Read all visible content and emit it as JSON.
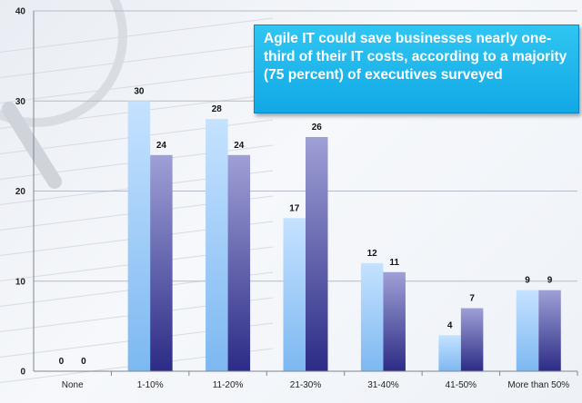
{
  "chart_data": {
    "type": "bar",
    "categories": [
      "None",
      "1-10%",
      "11-20%",
      "21-30%",
      "31-40%",
      "41-50%",
      "More than 50%"
    ],
    "series": [
      {
        "values": [
          0,
          30,
          28,
          17,
          12,
          4,
          9
        ]
      },
      {
        "values": [
          0,
          24,
          24,
          26,
          11,
          7,
          9
        ]
      }
    ],
    "ylim": [
      0,
      40
    ],
    "yticks": [
      0,
      10,
      20,
      30,
      40
    ],
    "grid": true,
    "annotation": "Agile IT could save businesses nearly one-third of their IT costs, according to a majority (75 percent) of executives surveyed",
    "colors": {
      "series1": [
        "#c5e2ff",
        "#7db8f1"
      ],
      "series2": [
        "#9fa0d6",
        "#2c2b86"
      ],
      "callout": "#1ab4ea",
      "grid": "#b4bcc8"
    }
  }
}
